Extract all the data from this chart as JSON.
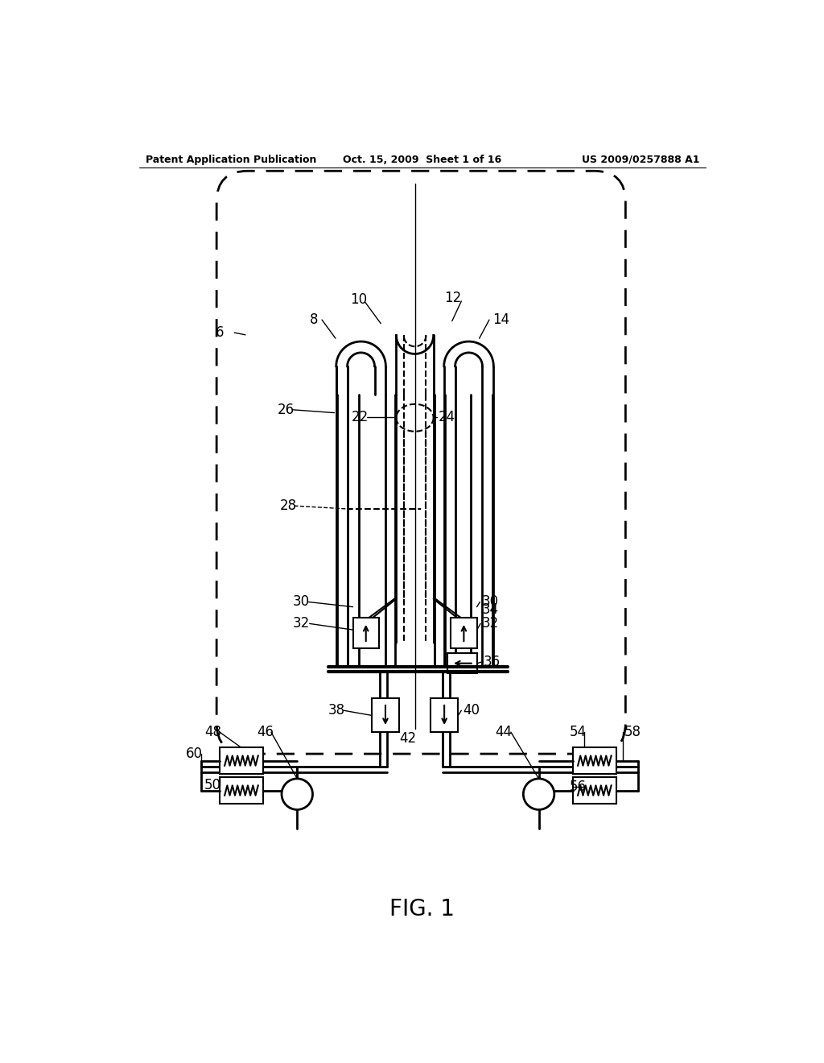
{
  "bg_color": "#ffffff",
  "header_left": "Patent Application Publication",
  "header_mid": "Oct. 15, 2009  Sheet 1 of 16",
  "header_right": "US 2009/0257888 A1",
  "figure_label": "FIG. 1"
}
